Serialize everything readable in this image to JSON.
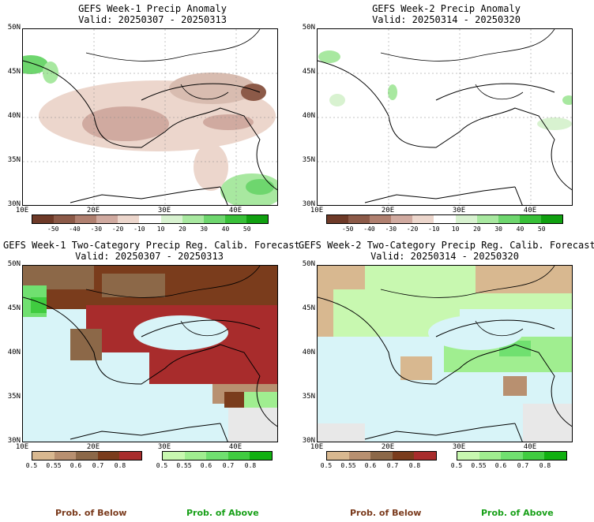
{
  "panels": [
    {
      "title": "GEFS Week-1 Precip Anomaly",
      "valid": "Valid: 20250307 - 20250313"
    },
    {
      "title": "GEFS Week-2 Precip Anomaly",
      "valid": "Valid: 20250314 - 20250320"
    },
    {
      "title": "GEFS Week-1 Two-Category Precip Reg. Calib. Forecast",
      "valid": "Valid: 20250307 - 20250313"
    },
    {
      "title": "GEFS Week-2 Two-Category Precip Reg. Calib. Forecast",
      "valid": "Valid: 20250314 - 20250320"
    }
  ],
  "lat_ticks": [
    "50N",
    "45N",
    "40N",
    "35N",
    "30N"
  ],
  "lon_ticks": [
    "10E",
    "20E",
    "30E",
    "40E"
  ],
  "anomaly_colorbar": {
    "labels": [
      "-50",
      "-40",
      "-30",
      "-20",
      "-10",
      "10",
      "20",
      "30",
      "40",
      "50"
    ],
    "colors": [
      "#6e3a28",
      "#8c5a48",
      "#b08070",
      "#d0aaa0",
      "#ecd6cc",
      "#ffffff",
      "#d8f2d0",
      "#a8e8a0",
      "#6ed66e",
      "#38c038",
      "#10a010"
    ]
  },
  "prob_below": {
    "labels": [
      "0.5",
      "0.55",
      "0.6",
      "0.7",
      "0.8"
    ],
    "colors": [
      "#d8b890",
      "#b89070",
      "#8c6848",
      "#7a3c1c",
      "#a82c2c"
    ]
  },
  "prob_above": {
    "labels": [
      "0.5",
      "0.55",
      "0.6",
      "0.7",
      "0.8"
    ],
    "colors": [
      "#c8f8b0",
      "#a0ee90",
      "#70e070",
      "#40cc40",
      "#10b010"
    ]
  },
  "legend": {
    "below": "Prob. of Below",
    "above": "Prob. of Above"
  }
}
